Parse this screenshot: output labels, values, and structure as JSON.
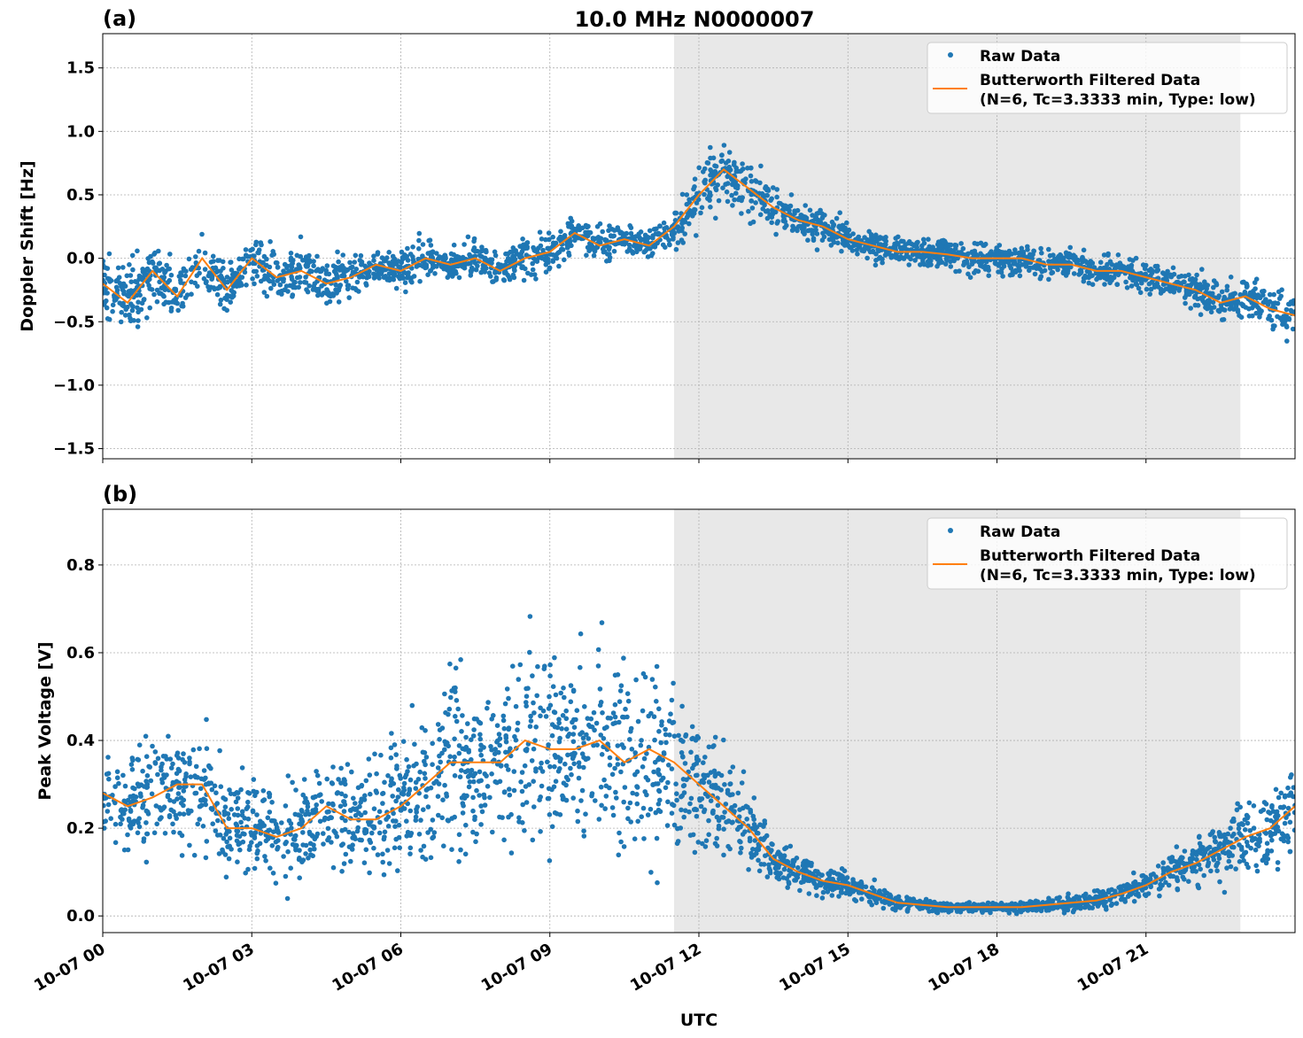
{
  "title": "10.0 MHz N0000007",
  "xlabel": "UTC",
  "colors": {
    "raw": "#1f77b4",
    "filtered": "#ff7f0e",
    "shade": "#e8e8e8",
    "grid": "#b0b0b0"
  },
  "chart_data": [
    {
      "type": "scatter+line",
      "panel_label": "(a)",
      "ylabel": "Doppler Shift [Hz]",
      "xlim_hours": [
        0,
        24
      ],
      "ylim": [
        -1.58,
        1.77
      ],
      "yticks": [
        -1.5,
        -1.0,
        -0.5,
        0.0,
        0.5,
        1.0,
        1.5
      ],
      "ytick_labels": [
        "−1.5",
        "−1.0",
        "−0.5",
        "0.0",
        "0.5",
        "1.0",
        "1.5"
      ],
      "xtick_labels": [
        "10-07 00",
        "10-07 03",
        "10-07 06",
        "10-07 09",
        "10-07 12",
        "10-07 15",
        "10-07 18",
        "10-07 21"
      ],
      "xtick_hours": [
        0,
        3,
        6,
        9,
        12,
        15,
        18,
        21
      ],
      "shaded_span_hours": [
        11.5,
        22.9
      ],
      "grid": true,
      "legend": {
        "placement": "top-right",
        "entries": [
          "Raw Data",
          "Butterworth Filtered Data",
          "(N=6, Tc=3.3333 min, Type: low)"
        ]
      },
      "x_hours": [
        0,
        0.5,
        1,
        1.5,
        2,
        2.5,
        3,
        3.5,
        4,
        4.5,
        5,
        5.5,
        6,
        6.5,
        7,
        7.5,
        8,
        8.5,
        9,
        9.5,
        10,
        10.5,
        11,
        11.5,
        12,
        12.5,
        13,
        13.5,
        14,
        14.5,
        15,
        15.5,
        16,
        16.5,
        17,
        17.5,
        18,
        18.5,
        19,
        19.5,
        20,
        20.5,
        21,
        21.5,
        22,
        22.5,
        23,
        23.5,
        24
      ],
      "series": [
        {
          "name": "Butterworth Filtered Data",
          "values": [
            -0.2,
            -0.35,
            -0.1,
            -0.3,
            0.0,
            -0.25,
            0.0,
            -0.15,
            -0.1,
            -0.2,
            -0.15,
            -0.05,
            -0.1,
            0.0,
            -0.05,
            0.0,
            -0.1,
            0.0,
            0.05,
            0.2,
            0.1,
            0.15,
            0.1,
            0.25,
            0.5,
            0.7,
            0.55,
            0.4,
            0.3,
            0.25,
            0.15,
            0.1,
            0.05,
            0.05,
            0.03,
            0.0,
            0.0,
            0.0,
            -0.05,
            -0.05,
            -0.1,
            -0.1,
            -0.15,
            -0.2,
            -0.25,
            -0.35,
            -0.3,
            -0.4,
            -0.45
          ]
        },
        {
          "name": "Raw Data",
          "spread": [
            0.4,
            0.45,
            0.4,
            0.4,
            0.35,
            0.35,
            0.35,
            0.35,
            0.35,
            0.3,
            0.3,
            0.25,
            0.25,
            0.25,
            0.22,
            0.22,
            0.22,
            0.25,
            0.25,
            0.25,
            0.22,
            0.22,
            0.2,
            0.25,
            0.45,
            0.45,
            0.35,
            0.3,
            0.25,
            0.25,
            0.22,
            0.2,
            0.2,
            0.2,
            0.2,
            0.2,
            0.2,
            0.2,
            0.2,
            0.2,
            0.2,
            0.2,
            0.2,
            0.22,
            0.25,
            0.25,
            0.25,
            0.3,
            0.3
          ]
        }
      ]
    },
    {
      "type": "scatter+line",
      "panel_label": "(b)",
      "ylabel": "Peak Voltage [V]",
      "xlim_hours": [
        0,
        24
      ],
      "ylim": [
        -0.038,
        0.927
      ],
      "yticks": [
        0.0,
        0.2,
        0.4,
        0.6,
        0.8
      ],
      "ytick_labels": [
        "0.0",
        "0.2",
        "0.4",
        "0.6",
        "0.8"
      ],
      "xtick_labels": [
        "10-07 00",
        "10-07 03",
        "10-07 06",
        "10-07 09",
        "10-07 12",
        "10-07 15",
        "10-07 18",
        "10-07 21"
      ],
      "xtick_hours": [
        0,
        3,
        6,
        9,
        12,
        15,
        18,
        21
      ],
      "shaded_span_hours": [
        11.5,
        22.9
      ],
      "grid": true,
      "legend": {
        "placement": "top-right",
        "entries": [
          "Raw Data",
          "Butterworth Filtered Data",
          "(N=6, Tc=3.3333 min, Type: low)"
        ]
      },
      "x_hours": [
        0,
        0.5,
        1,
        1.5,
        2,
        2.5,
        3,
        3.5,
        4,
        4.5,
        5,
        5.5,
        6,
        6.5,
        7,
        7.5,
        8,
        8.5,
        9,
        9.5,
        10,
        10.5,
        11,
        11.5,
        12,
        12.5,
        13,
        13.5,
        14,
        14.5,
        15,
        15.5,
        16,
        16.5,
        17,
        17.5,
        18,
        18.5,
        19,
        19.5,
        20,
        20.5,
        21,
        21.5,
        22,
        22.5,
        23,
        23.5,
        24
      ],
      "series": [
        {
          "name": "Butterworth Filtered Data",
          "values": [
            0.28,
            0.25,
            0.27,
            0.3,
            0.3,
            0.2,
            0.2,
            0.18,
            0.2,
            0.25,
            0.22,
            0.22,
            0.25,
            0.3,
            0.35,
            0.35,
            0.35,
            0.4,
            0.38,
            0.38,
            0.4,
            0.35,
            0.38,
            0.35,
            0.3,
            0.25,
            0.2,
            0.13,
            0.1,
            0.08,
            0.07,
            0.05,
            0.03,
            0.025,
            0.02,
            0.02,
            0.02,
            0.02,
            0.025,
            0.03,
            0.035,
            0.05,
            0.07,
            0.1,
            0.12,
            0.15,
            0.18,
            0.2,
            0.25
          ]
        },
        {
          "name": "Raw Data",
          "spread": [
            0.2,
            0.18,
            0.2,
            0.22,
            0.25,
            0.18,
            0.2,
            0.18,
            0.2,
            0.22,
            0.2,
            0.2,
            0.25,
            0.3,
            0.35,
            0.35,
            0.35,
            0.38,
            0.38,
            0.38,
            0.4,
            0.38,
            0.38,
            0.35,
            0.25,
            0.22,
            0.15,
            0.1,
            0.07,
            0.06,
            0.05,
            0.04,
            0.03,
            0.025,
            0.02,
            0.02,
            0.02,
            0.02,
            0.025,
            0.03,
            0.035,
            0.04,
            0.05,
            0.07,
            0.1,
            0.12,
            0.15,
            0.18,
            0.2
          ]
        }
      ]
    }
  ]
}
